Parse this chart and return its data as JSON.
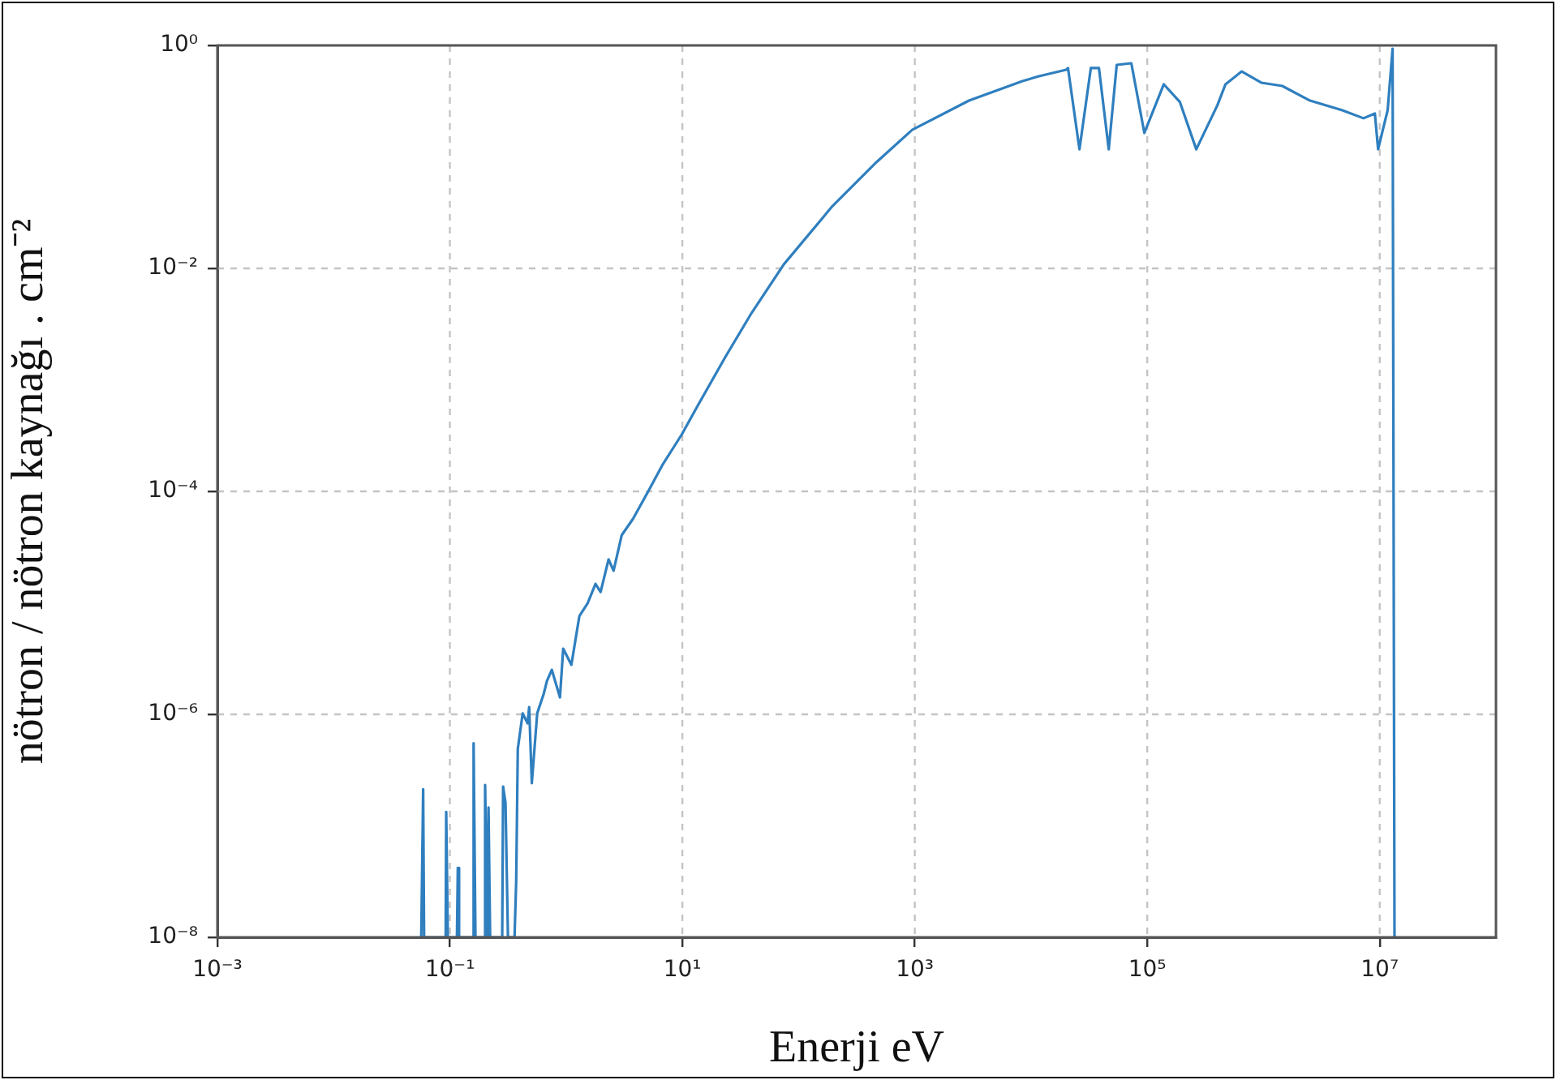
{
  "chart_data": {
    "type": "line",
    "xlabel": "Enerji eV",
    "ylabel": "nötron / nötron kaynağı . cm⁻²",
    "log": "xy",
    "grid": true,
    "marker": "none",
    "line_style": "solid",
    "xlim": [
      0.001,
      100000000
    ],
    "xticks": [
      {
        "value": 0.001,
        "label": "10⁻³"
      },
      {
        "value": 0.1,
        "label": "10⁻¹"
      },
      {
        "value": 10,
        "label": "10¹"
      },
      {
        "value": 1000,
        "label": "10³"
      },
      {
        "value": 100000,
        "label": "10⁵"
      },
      {
        "value": 10000000,
        "label": "10⁷"
      }
    ],
    "ylim": [
      1e-08,
      1
    ],
    "yticks": [
      {
        "value": 1e-08,
        "label": "10⁻⁸"
      },
      {
        "value": 1e-06,
        "label": "10⁻⁶"
      },
      {
        "value": 0.0001,
        "label": "10⁻⁴"
      },
      {
        "value": 0.01,
        "label": "10⁻²"
      },
      {
        "value": 1,
        "label": "10⁰"
      }
    ],
    "series": [
      {
        "color": "#2f7fbf",
        "x": [
          0.0567,
          0.0589,
          0.06,
          0.092,
          0.093,
          0.096,
          0.115,
          0.117,
          0.12,
          0.156,
          0.16,
          0.166,
          0.199,
          0.201,
          0.211,
          0.215,
          0.222,
          0.282,
          0.287,
          0.301,
          0.316,
          0.36,
          0.372,
          0.384,
          0.423,
          0.466,
          0.481,
          0.507,
          0.564,
          0.641,
          0.684,
          0.753,
          0.885,
          0.944,
          1.11,
          1.3,
          1.53,
          1.79,
          1.98,
          2.32,
          2.56,
          3.01,
          3.76,
          5.19,
          6.71,
          9.87,
          13.6,
          23.5,
          39.4,
          74.8,
          196,
          468,
          950,
          2930,
          8450,
          11700,
          20100,
          20800,
          26100,
          32700,
          38400,
          46600,
          54600,
          72900,
          94400,
          138700,
          191000,
          264000,
          401000,
          471000,
          650000,
          955000,
          1450000,
          2510000,
          4770000,
          7250000,
          9080000,
          9680000,
          11700000,
          12900000,
          13400000
        ],
        "values": [
          1e-08,
          2.13e-07,
          1e-08,
          1e-08,
          1.33e-07,
          1e-08,
          1e-08,
          4.2e-08,
          1e-08,
          1e-08,
          5.5e-07,
          1e-08,
          1e-08,
          2.33e-07,
          1e-08,
          1.46e-07,
          1e-08,
          1e-08,
          2.25e-07,
          1.61e-07,
          1e-08,
          1e-08,
          3.2e-08,
          4.9e-07,
          1.02e-06,
          8.3e-07,
          1.16e-06,
          2.41e-07,
          1.02e-06,
          1.52e-06,
          1.99e-06,
          2.51e-06,
          1.42e-06,
          3.88e-06,
          2.78e-06,
          7.6e-06,
          9.9e-06,
          1.48e-05,
          1.25e-05,
          2.45e-05,
          1.94e-05,
          4.05e-05,
          5.66e-05,
          0.000104,
          0.000171,
          0.000323,
          0.00059,
          0.00161,
          0.00398,
          0.0109,
          0.0363,
          0.0897,
          0.175,
          0.32,
          0.479,
          0.529,
          0.605,
          0.626,
          0.117,
          0.626,
          0.626,
          0.117,
          0.669,
          0.692,
          0.164,
          0.448,
          0.31,
          0.117,
          0.29,
          0.448,
          0.585,
          0.463,
          0.433,
          0.32,
          0.262,
          0.222,
          0.245,
          0.117,
          0.262,
          0.935,
          1e-08
        ]
      }
    ]
  }
}
